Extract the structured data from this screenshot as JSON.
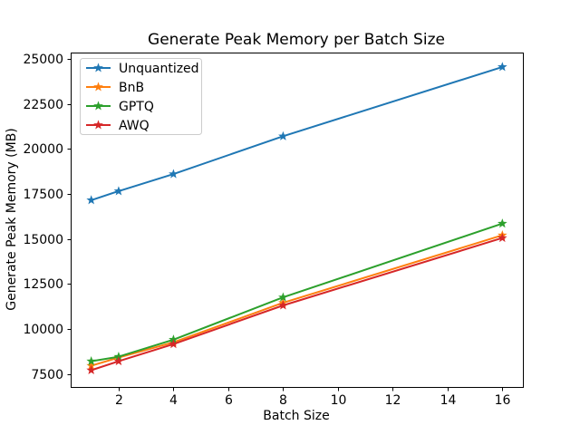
{
  "chart_data": {
    "type": "line",
    "title": "Generate Peak Memory per Batch Size",
    "xlabel": "Batch Size",
    "ylabel": "Generate Peak Memory (MB)",
    "x": [
      1,
      2,
      4,
      8,
      16
    ],
    "series": [
      {
        "name": "Unquantized",
        "color": "#1f77b4",
        "values": [
          17150,
          17650,
          18600,
          20700,
          24550
        ]
      },
      {
        "name": "BnB",
        "color": "#ff7f0e",
        "values": [
          7950,
          8400,
          9250,
          11450,
          15200
        ]
      },
      {
        "name": "GPTQ",
        "color": "#2ca02c",
        "values": [
          8200,
          8450,
          9400,
          11750,
          15850
        ]
      },
      {
        "name": "AWQ",
        "color": "#d62728",
        "values": [
          7700,
          8200,
          9150,
          11300,
          15050
        ]
      }
    ],
    "xticks": [
      2,
      4,
      6,
      8,
      10,
      12,
      14,
      16
    ],
    "yticks": [
      7500,
      10000,
      12500,
      15000,
      17500,
      20000,
      22500,
      25000
    ],
    "xlim": [
      0.25,
      16.75
    ],
    "ylim": [
      6770,
      25350
    ],
    "marker": "star",
    "grid": false,
    "legend_position": "upper-left",
    "axes_color": "#000000",
    "background_color": "#ffffff",
    "legend_border_color": "#cccccc"
  },
  "layout_labels": {
    "figure_name": "matplotlib-figure"
  }
}
